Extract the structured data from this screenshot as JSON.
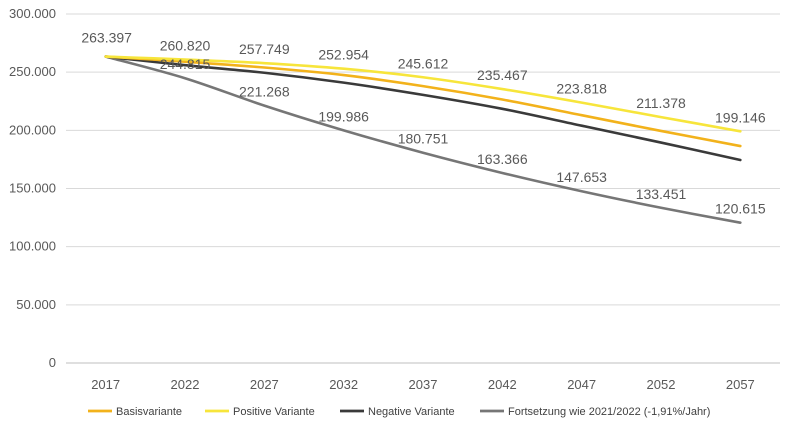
{
  "chart_data": {
    "type": "line",
    "title": "",
    "xlabel": "",
    "ylabel": "",
    "categories": [
      "2017",
      "2022",
      "2027",
      "2032",
      "2037",
      "2042",
      "2047",
      "2052",
      "2057"
    ],
    "ylim": [
      0,
      300000
    ],
    "yticks": [
      0,
      50000,
      100000,
      150000,
      200000,
      250000,
      300000
    ],
    "ytick_labels": [
      "0",
      "50.000",
      "100.000",
      "150.000",
      "200.000",
      "250.000",
      "300.000"
    ],
    "grid": "horizontal",
    "legend_position": "bottom",
    "series": [
      {
        "name": "Basisvariante",
        "color": "#F2B21B",
        "values": [
          263397,
          259000,
          254000,
          247500,
          238000,
          226500,
          213000,
          199500,
          186500
        ]
      },
      {
        "name": "Positive Variante",
        "color": "#F7E53B",
        "values": [
          263397,
          260820,
          257749,
          252954,
          245612,
          235467,
          223818,
          211378,
          199146
        ]
      },
      {
        "name": "Negative Variante",
        "color": "#3A3A3A",
        "values": [
          263397,
          256000,
          249500,
          241000,
          230500,
          218500,
          204000,
          189500,
          174500
        ]
      },
      {
        "name": "Fortsetzung wie 2021/2022 (-1,91%/Jahr)",
        "color": "#767676",
        "values": [
          263397,
          244815,
          221268,
          199986,
          180751,
          163366,
          147653,
          133451,
          120615
        ]
      }
    ],
    "data_labels": [
      {
        "category": "2017",
        "text": "263.397"
      },
      {
        "category": "2022",
        "text": "260.820"
      },
      {
        "category": "2027",
        "text": "257.749"
      },
      {
        "category": "2032",
        "text": "252.954"
      },
      {
        "category": "2037",
        "text": "245.612"
      },
      {
        "category": "2042",
        "text": "235.467"
      },
      {
        "category": "2047",
        "text": "223.818"
      },
      {
        "category": "2052",
        "text": "211.378"
      },
      {
        "category": "2057",
        "text": "199.146"
      },
      {
        "category": "2022",
        "text": "244.815"
      },
      {
        "category": "2027",
        "text": "221.268"
      },
      {
        "category": "2032",
        "text": "199.986"
      },
      {
        "category": "2037",
        "text": "180.751"
      },
      {
        "category": "2042",
        "text": "163.366"
      },
      {
        "category": "2047",
        "text": "147.653"
      },
      {
        "category": "2052",
        "text": "133.451"
      },
      {
        "category": "2057",
        "text": "120.615"
      }
    ]
  }
}
